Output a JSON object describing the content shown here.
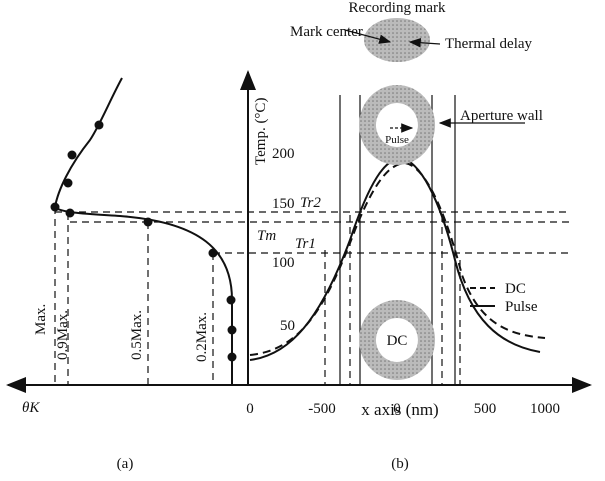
{
  "labels": {
    "recording_mark": "Recording mark",
    "mark_center": "Mark center",
    "thermal_delay": "Thermal delay",
    "aperture_wall": "Aperture wall",
    "pulse_inner": "Pulse",
    "dc_inner": "DC",
    "legend_dc": "DC",
    "legend_pulse": "Pulse",
    "y_axis": "Temp. (°C)",
    "x_axis": "x axis (nm)",
    "theta": "θK",
    "panel_a": "(a)",
    "panel_b": "(b)",
    "tr2": "Tr2",
    "tm": "Tm",
    "tr1": "Tr1"
  },
  "left_levels": [
    "Max.",
    "0.9Max.",
    "0.5Max.",
    "0.2Max."
  ],
  "y_ticks": [
    "200",
    "150",
    "100",
    "50"
  ],
  "x_ticks": [
    "0",
    "-500",
    "0",
    "500",
    "1000"
  ]
}
